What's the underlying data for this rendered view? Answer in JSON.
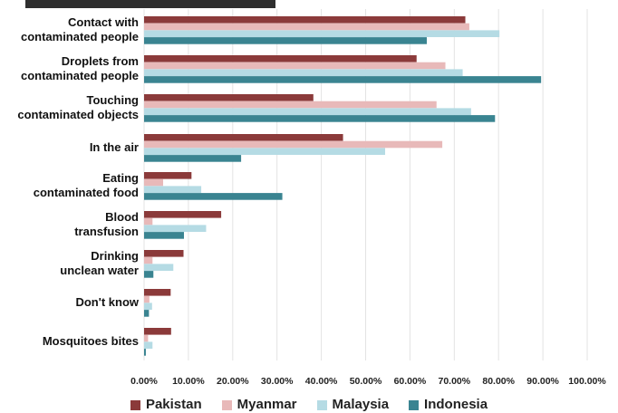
{
  "chart_data": {
    "type": "bar",
    "orientation": "horizontal",
    "categories": [
      [
        "Contact with",
        "contaminated people"
      ],
      [
        "Droplets from",
        "contaminated people"
      ],
      [
        "Touching",
        "contaminated objects"
      ],
      [
        "In the air"
      ],
      [
        "Eating",
        "contaminated food"
      ],
      [
        "Blood",
        "transfusion"
      ],
      [
        "Drinking",
        "unclean water"
      ],
      [
        "Don't know"
      ],
      [
        "Mosquitoes bites"
      ]
    ],
    "series": [
      {
        "name": "Pakistan",
        "color": "#8b3a3a",
        "values": [
          72.5,
          61.5,
          38.2,
          44.9,
          10.7,
          17.4,
          8.9,
          6.0,
          6.1
        ]
      },
      {
        "name": "Myanmar",
        "color": "#e8b9b9",
        "values": [
          73.4,
          68.0,
          66.0,
          67.3,
          4.3,
          1.9,
          1.9,
          1.2,
          0.9
        ]
      },
      {
        "name": "Malaysia",
        "color": "#b5dbe4",
        "values": [
          80.2,
          71.9,
          73.8,
          54.4,
          12.9,
          14.0,
          6.6,
          1.8,
          1.9
        ]
      },
      {
        "name": "Indonesia",
        "color": "#3a8491",
        "values": [
          63.8,
          89.6,
          79.2,
          21.9,
          31.2,
          9.0,
          2.1,
          1.1,
          0.4
        ]
      }
    ],
    "x_ticks": [
      "0.00%",
      "10.00%",
      "20.00%",
      "30.00%",
      "40.00%",
      "50.00%",
      "60.00%",
      "70.00%",
      "80.00%",
      "90.00%",
      "100.00%"
    ],
    "xlim": [
      0,
      100
    ],
    "grid": true,
    "legend_position": "bottom"
  }
}
